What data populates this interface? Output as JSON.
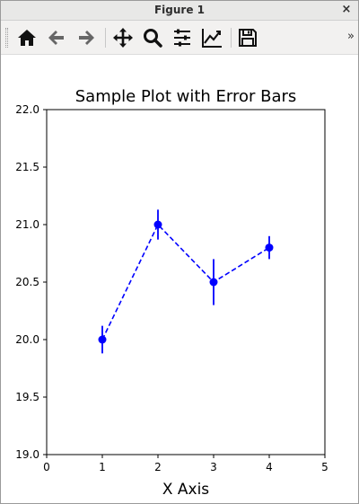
{
  "window": {
    "title": "Figure 1",
    "close_glyph": "×"
  },
  "toolbar": {
    "buttons": [
      {
        "name": "home-icon",
        "tooltip": "Home"
      },
      {
        "name": "back-arrow-icon",
        "tooltip": "Back"
      },
      {
        "name": "forward-arrow-icon",
        "tooltip": "Forward"
      },
      {
        "name": "pan-icon",
        "tooltip": "Pan"
      },
      {
        "name": "zoom-icon",
        "tooltip": "Zoom"
      },
      {
        "name": "subplots-config-icon",
        "tooltip": "Configure subplots"
      },
      {
        "name": "edit-axes-icon",
        "tooltip": "Edit axis"
      },
      {
        "name": "save-icon",
        "tooltip": "Save"
      }
    ],
    "overflow_glyph": "»"
  },
  "chart_data": {
    "type": "line",
    "title": "Sample Plot with Error Bars",
    "xlabel": "X Axis",
    "ylabel": "",
    "xlim": [
      0,
      5
    ],
    "ylim": [
      19.0,
      22.0
    ],
    "xticks": [
      "0",
      "1",
      "2",
      "3",
      "4",
      "5"
    ],
    "yticks": [
      "19.0",
      "19.5",
      "20.0",
      "20.5",
      "21.0",
      "21.5",
      "22.0"
    ],
    "grid": false,
    "series": [
      {
        "color": "#0000ff",
        "line_style": "dashed",
        "marker": "circle",
        "x": [
          1,
          2,
          3,
          4
        ],
        "y": [
          20.0,
          21.0,
          20.5,
          20.8
        ],
        "yerr": [
          0.12,
          0.13,
          0.2,
          0.1
        ]
      }
    ]
  }
}
